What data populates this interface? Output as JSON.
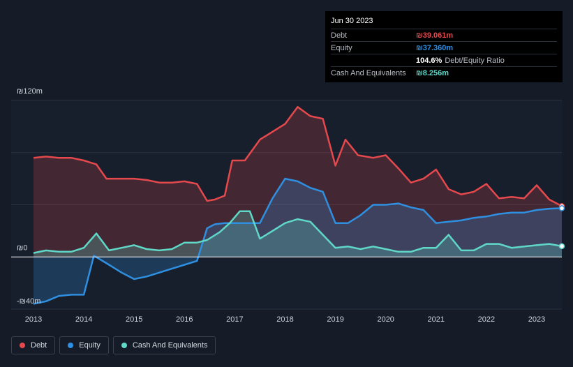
{
  "tooltip": {
    "date": "Jun 30 2023",
    "debt_label": "Debt",
    "debt_value": "₪39.061m",
    "equity_label": "Equity",
    "equity_value": "₪37.360m",
    "ratio_value": "104.6%",
    "ratio_label": "Debt/Equity Ratio",
    "cash_label": "Cash And Equivalents",
    "cash_value": "₪8.256m"
  },
  "legend": {
    "debt": "Debt",
    "equity": "Equity",
    "cash": "Cash And Equivalents"
  },
  "colors": {
    "debt": "#e5484d",
    "equity": "#2f8fe0",
    "cash": "#5fd8c8",
    "background": "#151c28"
  },
  "chart_data": {
    "type": "area",
    "y_tick_labels": [
      "₪120m",
      "₪0",
      "-₪40m"
    ],
    "x_tick_labels": [
      "2013",
      "2014",
      "2015",
      "2016",
      "2017",
      "2018",
      "2019",
      "2020",
      "2021",
      "2022",
      "2023"
    ],
    "ylim": [
      -40,
      120
    ],
    "series": [
      {
        "name": "Debt",
        "x": [
          2013.0,
          2013.25,
          2013.5,
          2013.75,
          2014.0,
          2014.25,
          2014.45,
          2014.75,
          2015.0,
          2015.25,
          2015.5,
          2015.75,
          2016.0,
          2016.25,
          2016.45,
          2016.6,
          2016.8,
          2016.95,
          2017.2,
          2017.5,
          2017.75,
          2018.0,
          2018.25,
          2018.5,
          2018.75,
          2019.0,
          2019.2,
          2019.45,
          2019.75,
          2020.0,
          2020.25,
          2020.5,
          2020.75,
          2021.0,
          2021.25,
          2021.5,
          2021.75,
          2022.0,
          2022.25,
          2022.5,
          2022.75,
          2023.0,
          2023.25,
          2023.5
        ],
        "values": [
          76,
          77,
          76,
          76,
          74,
          71,
          60,
          60,
          60,
          59,
          57,
          57,
          58,
          56,
          43,
          44,
          47,
          74,
          74,
          90,
          96,
          102,
          115,
          108,
          106,
          70,
          90,
          78,
          76,
          78,
          68,
          57,
          60,
          67,
          52,
          48,
          50,
          56,
          45,
          46,
          45,
          55,
          44,
          39
        ]
      },
      {
        "name": "Equity",
        "x": [
          2013.0,
          2013.25,
          2013.5,
          2013.75,
          2014.0,
          2014.2,
          2014.5,
          2014.75,
          2015.0,
          2015.25,
          2015.5,
          2015.75,
          2016.0,
          2016.25,
          2016.45,
          2016.6,
          2016.8,
          2017.0,
          2017.25,
          2017.5,
          2017.75,
          2018.0,
          2018.25,
          2018.5,
          2018.75,
          2019.0,
          2019.25,
          2019.5,
          2019.75,
          2020.0,
          2020.25,
          2020.5,
          2020.75,
          2021.0,
          2021.25,
          2021.5,
          2021.75,
          2022.0,
          2022.25,
          2022.5,
          2022.75,
          2023.0,
          2023.25,
          2023.5
        ],
        "values": [
          -36,
          -34,
          -30,
          -29,
          -29,
          1,
          -6,
          -12,
          -17,
          -15,
          -12,
          -9,
          -6,
          -3,
          22,
          25,
          26,
          26,
          26,
          26,
          45,
          60,
          58,
          53,
          50,
          26,
          26,
          32,
          40,
          40,
          41,
          38,
          36,
          26,
          27,
          28,
          30,
          31,
          33,
          34,
          34,
          36,
          37,
          37.36
        ]
      },
      {
        "name": "Cash And Equivalents",
        "x": [
          2013.0,
          2013.25,
          2013.5,
          2013.75,
          2014.0,
          2014.25,
          2014.5,
          2014.75,
          2015.0,
          2015.25,
          2015.5,
          2015.75,
          2016.0,
          2016.25,
          2016.45,
          2016.7,
          2016.9,
          2017.1,
          2017.3,
          2017.5,
          2017.75,
          2018.0,
          2018.25,
          2018.5,
          2018.75,
          2019.0,
          2019.25,
          2019.5,
          2019.75,
          2020.0,
          2020.25,
          2020.5,
          2020.75,
          2021.0,
          2021.25,
          2021.5,
          2021.75,
          2022.0,
          2022.25,
          2022.5,
          2022.75,
          2023.0,
          2023.25,
          2023.5
        ],
        "values": [
          3,
          5,
          4,
          4,
          7,
          18,
          5,
          7,
          9,
          6,
          5,
          6,
          11,
          11,
          13,
          19,
          26,
          35,
          35,
          14,
          20,
          26,
          29,
          27,
          17,
          7,
          8,
          6,
          8,
          6,
          4,
          4,
          7,
          7,
          17,
          5,
          5,
          10,
          10,
          7,
          8,
          9,
          10,
          8.256
        ]
      }
    ]
  }
}
